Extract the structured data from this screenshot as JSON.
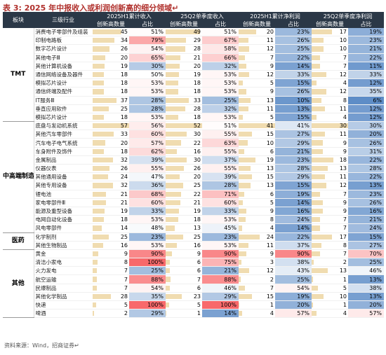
{
  "title": "表 3:  2025 年中报收入或利润创新高的细分领域↵",
  "headers": {
    "sector": "板块",
    "industry": "三级行业",
    "groups": [
      "2025H1累计收入",
      "25Q2单季度收入",
      "2025H1累计净利润",
      "25Q2单季度净利润"
    ],
    "count": "创新高数量",
    "ratio": "占比"
  },
  "source": "资料来源：Wind，招商证券↵",
  "colors": {
    "header_bg": "#2b3847",
    "bar": "#f0dcb0",
    "high": "#f8696b",
    "low": "#5a8ac6"
  },
  "sectors": [
    {
      "name": "TMT",
      "rows": [
        {
          "industry": "消费电子零部件及组装",
          "v": [
            45,
            "51%",
            49,
            "51%",
            20,
            "23%",
            17,
            "19%"
          ]
        },
        {
          "industry": "印制电路板",
          "v": [
            34,
            "79%",
            29,
            "67%",
            11,
            "26%",
            10,
            "23%"
          ]
        },
        {
          "industry": "数字芯片设计",
          "v": [
            26,
            "54%",
            28,
            "58%",
            12,
            "25%",
            10,
            "21%"
          ]
        },
        {
          "industry": "其他电子Ⅲ",
          "v": [
            20,
            "65%",
            21,
            "66%",
            7,
            "22%",
            7,
            "22%"
          ]
        },
        {
          "industry": "其他计算机设备",
          "v": [
            19,
            "30%",
            20,
            "32%",
            9,
            "14%",
            7,
            "11%"
          ]
        },
        {
          "industry": "通信网络设备及器件",
          "v": [
            18,
            "50%",
            19,
            "53%",
            12,
            "33%",
            12,
            "33%"
          ]
        },
        {
          "industry": "模拟芯片设计",
          "v": [
            18,
            "53%",
            18,
            "53%",
            5,
            "15%",
            4,
            "12%"
          ]
        },
        {
          "industry": "通信终端及配件",
          "v": [
            18,
            "53%",
            18,
            "53%",
            9,
            "26%",
            12,
            "35%"
          ]
        },
        {
          "industry": "IT服务Ⅲ",
          "v": [
            37,
            "28%",
            33,
            "25%",
            13,
            "10%",
            8,
            "6%"
          ]
        },
        {
          "industry": "垂直应用软件",
          "v": [
            25,
            "28%",
            28,
            "32%",
            11,
            "13%",
            11,
            "12%"
          ]
        },
        {
          "industry": "模拟芯片设计",
          "v": [
            18,
            "53%",
            18,
            "53%",
            5,
            "15%",
            4,
            "12%"
          ]
        }
      ]
    },
    {
      "name": "中高端制造",
      "rows": [
        {
          "industry": "底盘与发动机系统",
          "v": [
            57,
            "56%",
            52,
            "51%",
            41,
            "41%",
            30,
            "30%"
          ]
        },
        {
          "industry": "其他汽车零部件",
          "v": [
            33,
            "60%",
            30,
            "55%",
            15,
            "27%",
            11,
            "20%"
          ]
        },
        {
          "industry": "汽车电子电气系统",
          "v": [
            20,
            "57%",
            22,
            "63%",
            10,
            "29%",
            9,
            "26%"
          ]
        },
        {
          "industry": "车身附件及饰件",
          "v": [
            18,
            "62%",
            16,
            "55%",
            6,
            "21%",
            9,
            "31%"
          ]
        },
        {
          "industry": "金属制品",
          "v": [
            32,
            "39%",
            30,
            "37%",
            19,
            "23%",
            18,
            "22%"
          ]
        },
        {
          "industry": "仪器仪表",
          "v": [
            26,
            "55%",
            26,
            "55%",
            13,
            "28%",
            13,
            "28%"
          ]
        },
        {
          "industry": "其他通用设备",
          "v": [
            24,
            "47%",
            20,
            "39%",
            15,
            "29%",
            11,
            "22%"
          ]
        },
        {
          "industry": "其他专用设备",
          "v": [
            32,
            "36%",
            25,
            "28%",
            13,
            "15%",
            12,
            "13%"
          ]
        },
        {
          "industry": "锂电池",
          "v": [
            21,
            "68%",
            22,
            "71%",
            6,
            "19%",
            7,
            "23%"
          ]
        },
        {
          "industry": "家电零部件Ⅲ",
          "v": [
            21,
            "60%",
            21,
            "60%",
            5,
            "14%",
            9,
            "26%"
          ]
        },
        {
          "industry": "能源及重型设备",
          "v": [
            19,
            "33%",
            19,
            "33%",
            9,
            "16%",
            9,
            "16%"
          ]
        },
        {
          "industry": "电网自动化设备",
          "v": [
            18,
            "53%",
            18,
            "53%",
            8,
            "24%",
            7,
            "21%"
          ]
        },
        {
          "industry": "风电零部件",
          "v": [
            14,
            "48%",
            13,
            "45%",
            4,
            "14%",
            7,
            "24%"
          ]
        }
      ]
    },
    {
      "name": "医药",
      "rows": [
        {
          "industry": "化学制剂",
          "v": [
            25,
            "23%",
            25,
            "23%",
            24,
            "22%",
            17,
            "15%"
          ]
        },
        {
          "industry": "其他生物制品",
          "v": [
            16,
            "53%",
            16,
            "53%",
            11,
            "37%",
            8,
            "27%"
          ]
        }
      ]
    },
    {
      "name": "其他",
      "rows": [
        {
          "industry": "黄金",
          "v": [
            9,
            "90%",
            9,
            "90%",
            9,
            "90%",
            7,
            "70%"
          ]
        },
        {
          "industry": "清洁小家电",
          "v": [
            8,
            "100%",
            6,
            "75%",
            3,
            "38%",
            2,
            "25%"
          ]
        },
        {
          "industry": "火力发电",
          "v": [
            7,
            "25%",
            6,
            "21%",
            12,
            "43%",
            13,
            "46%"
          ]
        },
        {
          "industry": "航空运输",
          "v": [
            7,
            "88%",
            7,
            "88%",
            2,
            "25%",
            1,
            "13%"
          ]
        },
        {
          "industry": "民爆制品",
          "v": [
            7,
            "54%",
            6,
            "46%",
            7,
            "54%",
            5,
            "38%"
          ]
        },
        {
          "industry": "其他化学制品",
          "v": [
            28,
            "35%",
            23,
            "29%",
            15,
            "19%",
            10,
            "13%"
          ]
        },
        {
          "industry": "快递",
          "v": [
            5,
            "100%",
            5,
            "100%",
            1,
            "20%",
            1,
            "20%"
          ]
        },
        {
          "industry": "啤酒",
          "v": [
            2,
            "29%",
            1,
            "14%",
            4,
            "57%",
            4,
            "57%"
          ]
        }
      ]
    }
  ]
}
